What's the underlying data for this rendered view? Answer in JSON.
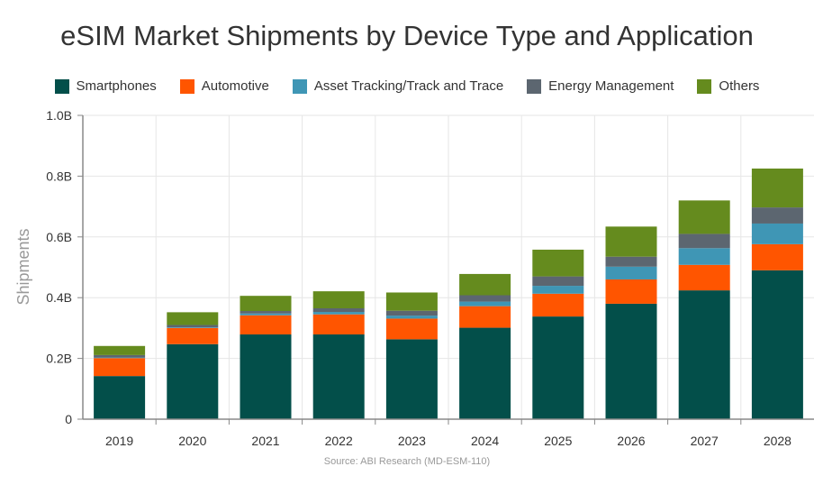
{
  "chart_data": {
    "type": "bar",
    "stacked": true,
    "title": "eSIM Market Shipments by Device Type and Application",
    "ylabel": "Shipments",
    "xlabel": "",
    "ylim": [
      0,
      1.0
    ],
    "yticks": [
      "0",
      "0.2B",
      "0.4B",
      "0.6B",
      "0.8B",
      "1.0B"
    ],
    "grid": true,
    "legend_position": "top",
    "categories": [
      "2019",
      "2020",
      "2021",
      "2022",
      "2023",
      "2024",
      "2025",
      "2026",
      "2027",
      "2028"
    ],
    "series": [
      {
        "name": "Smartphones",
        "color": "#034f4a",
        "values": [
          0.142,
          0.247,
          0.279,
          0.279,
          0.263,
          0.301,
          0.338,
          0.38,
          0.424,
          0.49
        ]
      },
      {
        "name": "Automotive",
        "color": "#ff5500",
        "values": [
          0.059,
          0.053,
          0.063,
          0.066,
          0.068,
          0.071,
          0.075,
          0.08,
          0.084,
          0.086
        ]
      },
      {
        "name": "Asset Tracking/Track and Trace",
        "color": "#3f96b5",
        "values": [
          0.002,
          0.002,
          0.006,
          0.008,
          0.01,
          0.015,
          0.026,
          0.042,
          0.055,
          0.068
        ]
      },
      {
        "name": "Energy Management",
        "color": "#5c6670",
        "values": [
          0.008,
          0.008,
          0.008,
          0.012,
          0.016,
          0.021,
          0.031,
          0.033,
          0.047,
          0.053
        ]
      },
      {
        "name": "Others",
        "color": "#658b1e",
        "values": [
          0.03,
          0.042,
          0.05,
          0.056,
          0.06,
          0.07,
          0.088,
          0.099,
          0.11,
          0.128
        ]
      }
    ],
    "source": "Source: ABI Research (MD-ESM-110)"
  }
}
